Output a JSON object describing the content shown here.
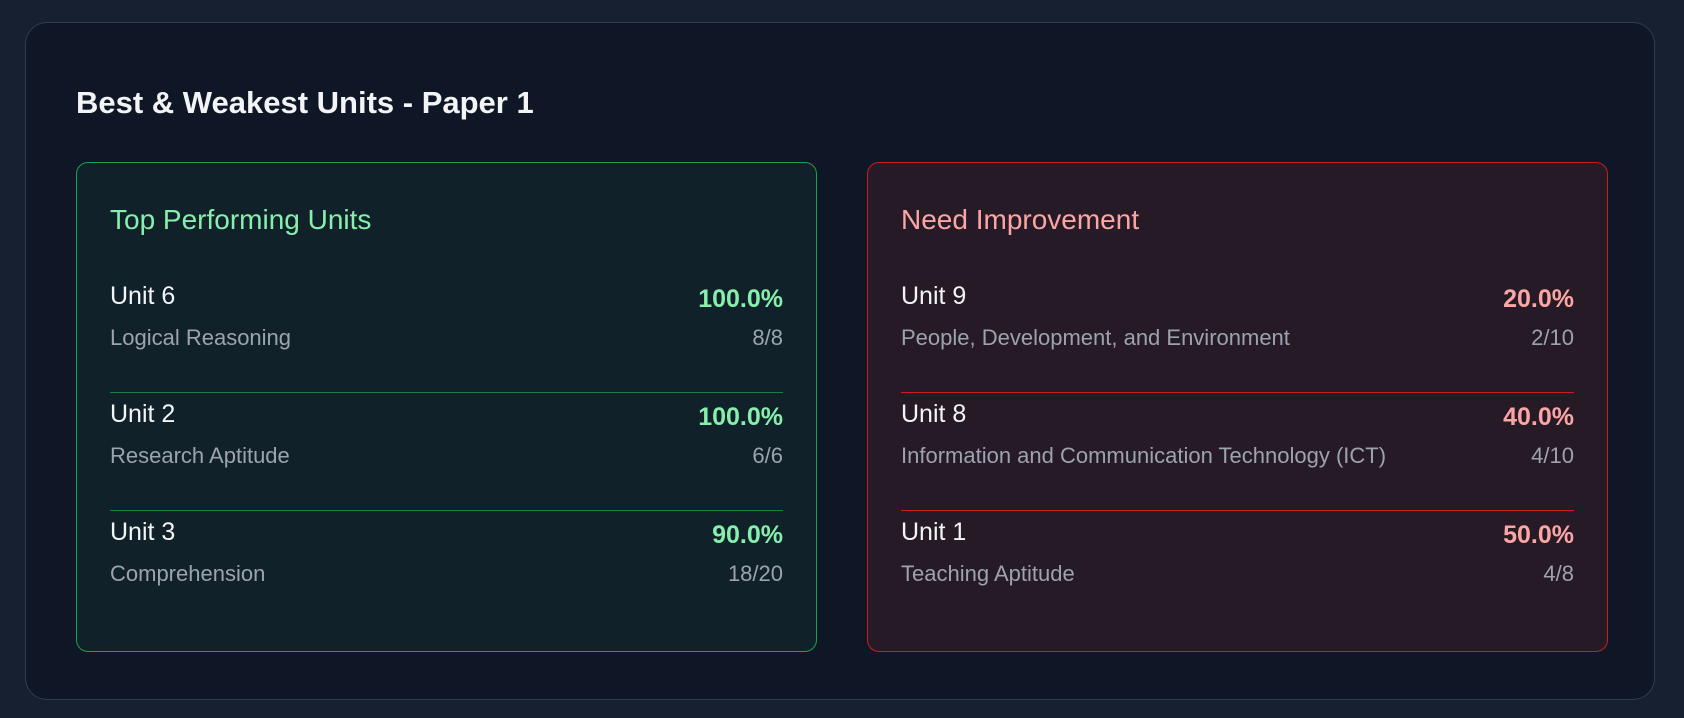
{
  "title": "Best & Weakest Units - Paper 1",
  "colors": {
    "good": "#86efac",
    "good_border": "#16a34a",
    "bad": "#fca5a5",
    "bad_border": "#c81e1e"
  },
  "top": {
    "heading": "Top Performing Units",
    "items": [
      {
        "unit": "Unit 6",
        "name": "Logical Reasoning",
        "percent": "100.0%",
        "score": "8/8"
      },
      {
        "unit": "Unit 2",
        "name": "Research Aptitude",
        "percent": "100.0%",
        "score": "6/6"
      },
      {
        "unit": "Unit 3",
        "name": "Comprehension",
        "percent": "90.0%",
        "score": "18/20"
      }
    ]
  },
  "weak": {
    "heading": "Need Improvement",
    "items": [
      {
        "unit": "Unit 9",
        "name": "People, Development, and Environment",
        "percent": "20.0%",
        "score": "2/10"
      },
      {
        "unit": "Unit 8",
        "name": "Information and Communication Technology (ICT)",
        "percent": "40.0%",
        "score": "4/10"
      },
      {
        "unit": "Unit 1",
        "name": "Teaching Aptitude",
        "percent": "50.0%",
        "score": "4/8"
      }
    ]
  }
}
